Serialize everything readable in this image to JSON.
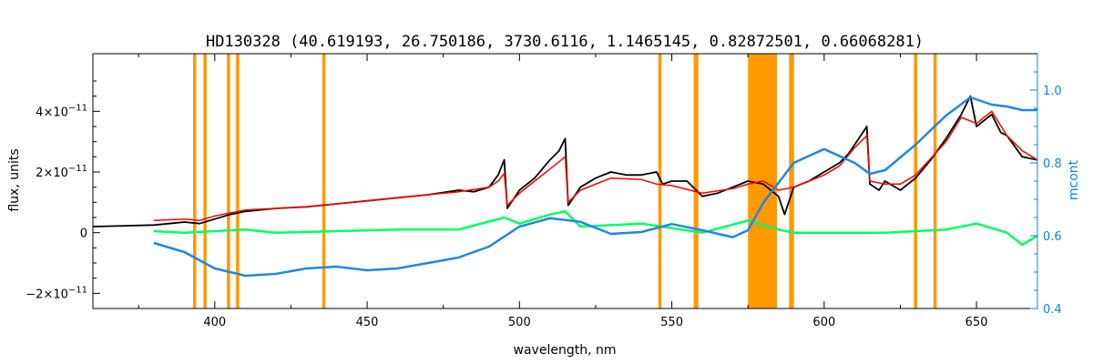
{
  "chart_data": {
    "type": "line",
    "title": "HD130328    (40.619193, 26.750186, 3730.6116, 1.1465145, 0.82872501, 0.66068281)",
    "xlabel": "wavelength, nm",
    "ylabel": "flux, units",
    "ylabel_right": "mcont",
    "xlim": [
      360,
      670
    ],
    "ylim": [
      -2.5e-11,
      5.9e-11
    ],
    "ylim_right": [
      0.4,
      1.1
    ],
    "x_ticks": [
      400,
      450,
      500,
      550,
      600,
      650
    ],
    "x_tick_labels": [
      "400",
      "450",
      "500",
      "550",
      "600",
      "650"
    ],
    "y_ticks": [
      -2e-11,
      0,
      2e-11,
      4e-11
    ],
    "y_tick_labels": [
      {
        "m": "−2×10",
        "e": "−11"
      },
      {
        "m": "0",
        "e": ""
      },
      {
        "m": "2×10",
        "e": "−11"
      },
      {
        "m": "4×10",
        "e": "−11"
      }
    ],
    "y_right_ticks": [
      0.4,
      0.6,
      0.8,
      1.0
    ],
    "y_right_tick_labels": [
      "0.4",
      "0.6",
      "0.8",
      "1.0"
    ],
    "grid": false,
    "colors": {
      "observed": "#000000",
      "model": "#ff0000",
      "residual": "#00ff66",
      "masked": "#ffff00",
      "mask_bands": "#ff9900",
      "continuum": "#1e88e5",
      "right_axis": "#0a84e6"
    },
    "mask_lines": [
      393.4,
      396.8,
      404.5,
      407.5,
      435.8,
      546.1,
      557.7,
      558.2,
      589.0,
      589.6,
      630.0,
      636.4
    ],
    "mask_bands": [
      [
        575.0,
        584.5
      ]
    ],
    "series": [
      {
        "role": "observed",
        "x": [
          360,
          380,
          385,
          390,
          395,
          400,
          405,
          410,
          420,
          430,
          440,
          450,
          460,
          470,
          480,
          485,
          490,
          493,
          495,
          496,
          500,
          505,
          510,
          513,
          515,
          516,
          520,
          525,
          530,
          535,
          540,
          545,
          547,
          550,
          555,
          560,
          565,
          570,
          575,
          580,
          585,
          587,
          590,
          595,
          600,
          605,
          608,
          612,
          614,
          615,
          618,
          620,
          625,
          630,
          635,
          640,
          645,
          648,
          650,
          655,
          658,
          660,
          665,
          670
        ],
        "y": [
          2e-12,
          2.5e-12,
          3e-12,
          3.5e-12,
          3e-12,
          4.5e-12,
          6e-12,
          7e-12,
          8e-12,
          8.5e-12,
          9.5e-12,
          1.05e-11,
          1.15e-11,
          1.25e-11,
          1.4e-11,
          1.35e-11,
          1.5e-11,
          1.9e-11,
          2.4e-11,
          8e-12,
          1.4e-11,
          1.8e-11,
          2.4e-11,
          2.7e-11,
          3.1e-11,
          9e-12,
          1.5e-11,
          1.8e-11,
          2e-11,
          1.9e-11,
          1.9e-11,
          2e-11,
          1.6e-11,
          1.7e-11,
          1.7e-11,
          1.2e-11,
          1.3e-11,
          1.5e-11,
          1.7e-11,
          1.6e-11,
          1.2e-11,
          6e-12,
          1.5e-11,
          1.7e-11,
          2e-11,
          2.3e-11,
          2.6e-11,
          3.2e-11,
          3.5e-11,
          1.6e-11,
          1.4e-11,
          1.7e-11,
          1.4e-11,
          1.8e-11,
          2.4e-11,
          3.1e-11,
          3.9e-11,
          4.5e-11,
          3.5e-11,
          3.9e-11,
          3.3e-11,
          3.2e-11,
          2.5e-11,
          2.4e-11
        ]
      },
      {
        "role": "model",
        "x": [
          380,
          390,
          395,
          400,
          405,
          410,
          420,
          430,
          440,
          450,
          460,
          470,
          480,
          490,
          493,
          495,
          496,
          500,
          505,
          510,
          515,
          516,
          520,
          530,
          540,
          545,
          550,
          560,
          570,
          575,
          580,
          585,
          590,
          595,
          600,
          605,
          610,
          614,
          615,
          620,
          625,
          630,
          640,
          645,
          650,
          655,
          660,
          665,
          670
        ],
        "y": [
          4e-12,
          4.5e-12,
          4e-12,
          5.5e-12,
          6.5e-12,
          7.5e-12,
          8e-12,
          8.5e-12,
          9.5e-12,
          1.05e-11,
          1.15e-11,
          1.25e-11,
          1.35e-11,
          1.5e-11,
          1.7e-11,
          1.95e-11,
          9e-12,
          1.3e-11,
          1.7e-11,
          2.1e-11,
          2.5e-11,
          1e-11,
          1.4e-11,
          1.8e-11,
          1.75e-11,
          1.6e-11,
          1.55e-11,
          1.3e-11,
          1.45e-11,
          1.6e-11,
          1.7e-11,
          1.4e-11,
          1.5e-11,
          1.7e-11,
          1.9e-11,
          2.2e-11,
          2.8e-11,
          3.2e-11,
          1.7e-11,
          1.6e-11,
          1.6e-11,
          1.9e-11,
          3e-11,
          3.8e-11,
          3.6e-11,
          4e-11,
          3.2e-11,
          2.7e-11,
          2.4e-11
        ]
      },
      {
        "role": "residual",
        "x": [
          380,
          390,
          400,
          410,
          420,
          440,
          460,
          480,
          495,
          500,
          510,
          515,
          520,
          540,
          560,
          575,
          585,
          590,
          600,
          620,
          640,
          650,
          660,
          665,
          670
        ],
        "y": [
          5e-13,
          0.0,
          5e-13,
          1e-12,
          0.0,
          5e-13,
          1e-12,
          1e-12,
          5e-12,
          3e-12,
          6e-12,
          7e-12,
          2e-12,
          3e-12,
          0.0,
          4e-12,
          1e-12,
          0.0,
          0.0,
          0.0,
          1e-12,
          3e-12,
          0.0,
          -4e-12,
          -1e-12
        ]
      },
      {
        "role": "continuum",
        "axis": "right",
        "x": [
          380,
          390,
          400,
          410,
          420,
          430,
          440,
          450,
          460,
          470,
          480,
          490,
          500,
          510,
          520,
          530,
          540,
          550,
          560,
          570,
          575,
          580,
          590,
          600,
          610,
          615,
          620,
          630,
          640,
          648,
          655,
          660,
          665,
          670
        ],
        "y": [
          0.58,
          0.555,
          0.51,
          0.49,
          0.495,
          0.51,
          0.515,
          0.505,
          0.51,
          0.525,
          0.54,
          0.57,
          0.625,
          0.648,
          0.638,
          0.605,
          0.61,
          0.632,
          0.615,
          0.596,
          0.615,
          0.69,
          0.8,
          0.838,
          0.8,
          0.77,
          0.78,
          0.85,
          0.93,
          0.98,
          0.96,
          0.955,
          0.945,
          0.945
        ]
      }
    ]
  }
}
